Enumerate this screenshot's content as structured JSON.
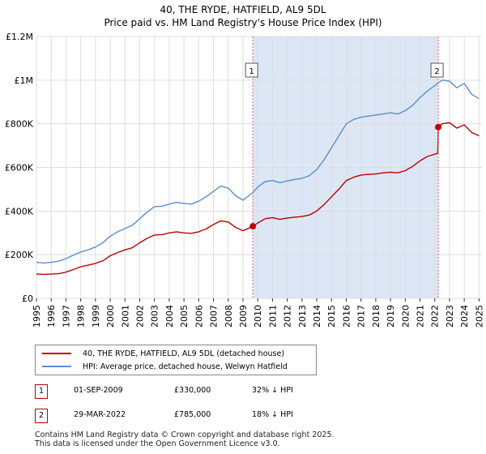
{
  "title_line1": "40, THE RYDE, HATFIELD, AL9 5DL",
  "title_line2": "Price paid vs. HM Land Registry's House Price Index (HPI)",
  "chart_data": {
    "type": "line",
    "xlim": [
      1995,
      2025.2
    ],
    "ylim": [
      0,
      1200000
    ],
    "x_ticks": [
      "1995",
      "1996",
      "1997",
      "1998",
      "1999",
      "2000",
      "2001",
      "2002",
      "2003",
      "2004",
      "2005",
      "2006",
      "2007",
      "2008",
      "2009",
      "2010",
      "2011",
      "2012",
      "2013",
      "2014",
      "2015",
      "2016",
      "2017",
      "2018",
      "2019",
      "2020",
      "2021",
      "2022",
      "2023",
      "2024",
      "2025"
    ],
    "y_ticks": [
      {
        "value": 0,
        "label": "£0"
      },
      {
        "value": 200000,
        "label": "£200K"
      },
      {
        "value": 400000,
        "label": "£400K"
      },
      {
        "value": 600000,
        "label": "£600K"
      },
      {
        "value": 800000,
        "label": "£800K"
      },
      {
        "value": 1000000,
        "label": "£1M"
      },
      {
        "value": 1200000,
        "label": "£1.2M"
      }
    ],
    "shaded_region": {
      "from": 2009.67,
      "to": 2022.24,
      "color": "#dce6f5"
    },
    "series": [
      {
        "name": "40, THE RYDE, HATFIELD, AL9 5DL (detached house)",
        "color": "#c00000",
        "points": [
          [
            1995,
            112000
          ],
          [
            1995.5,
            110000
          ],
          [
            1996,
            111000
          ],
          [
            1996.5,
            113000
          ],
          [
            1997,
            120000
          ],
          [
            1997.5,
            132000
          ],
          [
            1998,
            145000
          ],
          [
            1998.5,
            152000
          ],
          [
            1999,
            160000
          ],
          [
            1999.5,
            172000
          ],
          [
            2000,
            195000
          ],
          [
            2000.5,
            210000
          ],
          [
            2001,
            222000
          ],
          [
            2001.5,
            232000
          ],
          [
            2002,
            255000
          ],
          [
            2002.5,
            275000
          ],
          [
            2003,
            290000
          ],
          [
            2003.5,
            292000
          ],
          [
            2004,
            300000
          ],
          [
            2004.5,
            305000
          ],
          [
            2005,
            300000
          ],
          [
            2005.5,
            298000
          ],
          [
            2006,
            305000
          ],
          [
            2006.5,
            318000
          ],
          [
            2007,
            338000
          ],
          [
            2007.5,
            355000
          ],
          [
            2008,
            350000
          ],
          [
            2008.5,
            325000
          ],
          [
            2009,
            310000
          ],
          [
            2009.67,
            330000
          ],
          [
            2010,
            345000
          ],
          [
            2010.5,
            365000
          ],
          [
            2011,
            370000
          ],
          [
            2011.5,
            362000
          ],
          [
            2012,
            368000
          ],
          [
            2012.5,
            372000
          ],
          [
            2013,
            375000
          ],
          [
            2013.5,
            382000
          ],
          [
            2014,
            400000
          ],
          [
            2014.5,
            430000
          ],
          [
            2015,
            465000
          ],
          [
            2015.5,
            500000
          ],
          [
            2016,
            540000
          ],
          [
            2016.5,
            555000
          ],
          [
            2017,
            565000
          ],
          [
            2017.5,
            568000
          ],
          [
            2018,
            570000
          ],
          [
            2018.5,
            575000
          ],
          [
            2019,
            578000
          ],
          [
            2019.5,
            575000
          ],
          [
            2020,
            585000
          ],
          [
            2020.5,
            605000
          ],
          [
            2021,
            630000
          ],
          [
            2021.5,
            650000
          ],
          [
            2022.2,
            665000
          ],
          [
            2022.24,
            785000
          ],
          [
            2022.5,
            800000
          ],
          [
            2023,
            805000
          ],
          [
            2023.5,
            780000
          ],
          [
            2024,
            795000
          ],
          [
            2024.5,
            760000
          ],
          [
            2025,
            745000
          ]
        ]
      },
      {
        "name": "HPI: Average price, detached house, Welwyn Hatfield",
        "color": "#5b8fd0",
        "points": [
          [
            1995,
            165000
          ],
          [
            1995.5,
            162000
          ],
          [
            1996,
            165000
          ],
          [
            1996.5,
            170000
          ],
          [
            1997,
            182000
          ],
          [
            1997.5,
            198000
          ],
          [
            1998,
            212000
          ],
          [
            1998.5,
            222000
          ],
          [
            1999,
            235000
          ],
          [
            1999.5,
            255000
          ],
          [
            2000,
            285000
          ],
          [
            2000.5,
            305000
          ],
          [
            2001,
            320000
          ],
          [
            2001.5,
            335000
          ],
          [
            2002,
            365000
          ],
          [
            2002.5,
            395000
          ],
          [
            2003,
            420000
          ],
          [
            2003.5,
            422000
          ],
          [
            2004,
            432000
          ],
          [
            2004.5,
            440000
          ],
          [
            2005,
            435000
          ],
          [
            2005.5,
            432000
          ],
          [
            2006,
            445000
          ],
          [
            2006.5,
            465000
          ],
          [
            2007,
            490000
          ],
          [
            2007.5,
            515000
          ],
          [
            2008,
            505000
          ],
          [
            2008.5,
            470000
          ],
          [
            2009,
            450000
          ],
          [
            2009.67,
            485000
          ],
          [
            2010,
            510000
          ],
          [
            2010.5,
            535000
          ],
          [
            2011,
            540000
          ],
          [
            2011.5,
            530000
          ],
          [
            2012,
            538000
          ],
          [
            2012.5,
            545000
          ],
          [
            2013,
            550000
          ],
          [
            2013.5,
            562000
          ],
          [
            2014,
            590000
          ],
          [
            2014.5,
            635000
          ],
          [
            2015,
            690000
          ],
          [
            2015.5,
            745000
          ],
          [
            2016,
            800000
          ],
          [
            2016.5,
            820000
          ],
          [
            2017,
            830000
          ],
          [
            2017.5,
            835000
          ],
          [
            2018,
            840000
          ],
          [
            2018.5,
            845000
          ],
          [
            2019,
            850000
          ],
          [
            2019.5,
            845000
          ],
          [
            2020,
            860000
          ],
          [
            2020.5,
            885000
          ],
          [
            2021,
            920000
          ],
          [
            2021.5,
            950000
          ],
          [
            2022,
            975000
          ],
          [
            2022.5,
            1000000
          ],
          [
            2023,
            995000
          ],
          [
            2023.5,
            965000
          ],
          [
            2024,
            985000
          ],
          [
            2024.5,
            935000
          ],
          [
            2025,
            915000
          ]
        ]
      }
    ],
    "sales": [
      {
        "label": "1",
        "x": 2009.67,
        "y": 330000
      },
      {
        "label": "2",
        "x": 2022.24,
        "y": 785000
      }
    ]
  },
  "legend": {
    "items": [
      {
        "label": "40, THE RYDE, HATFIELD, AL9 5DL (detached house)",
        "color": "#c00000"
      },
      {
        "label": "HPI: Average price, detached house, Welwyn Hatfield",
        "color": "#5b8fd0"
      }
    ]
  },
  "transactions": [
    {
      "num": "1",
      "date": "01-SEP-2009",
      "price": "£330,000",
      "hpi": "32% ↓ HPI"
    },
    {
      "num": "2",
      "date": "29-MAR-2022",
      "price": "£785,000",
      "hpi": "18% ↓ HPI"
    }
  ],
  "footer": {
    "line1": "Contains HM Land Registry data © Crown copyright and database right 2025.",
    "line2": "This data is licensed under the Open Government Licence v3.0."
  }
}
